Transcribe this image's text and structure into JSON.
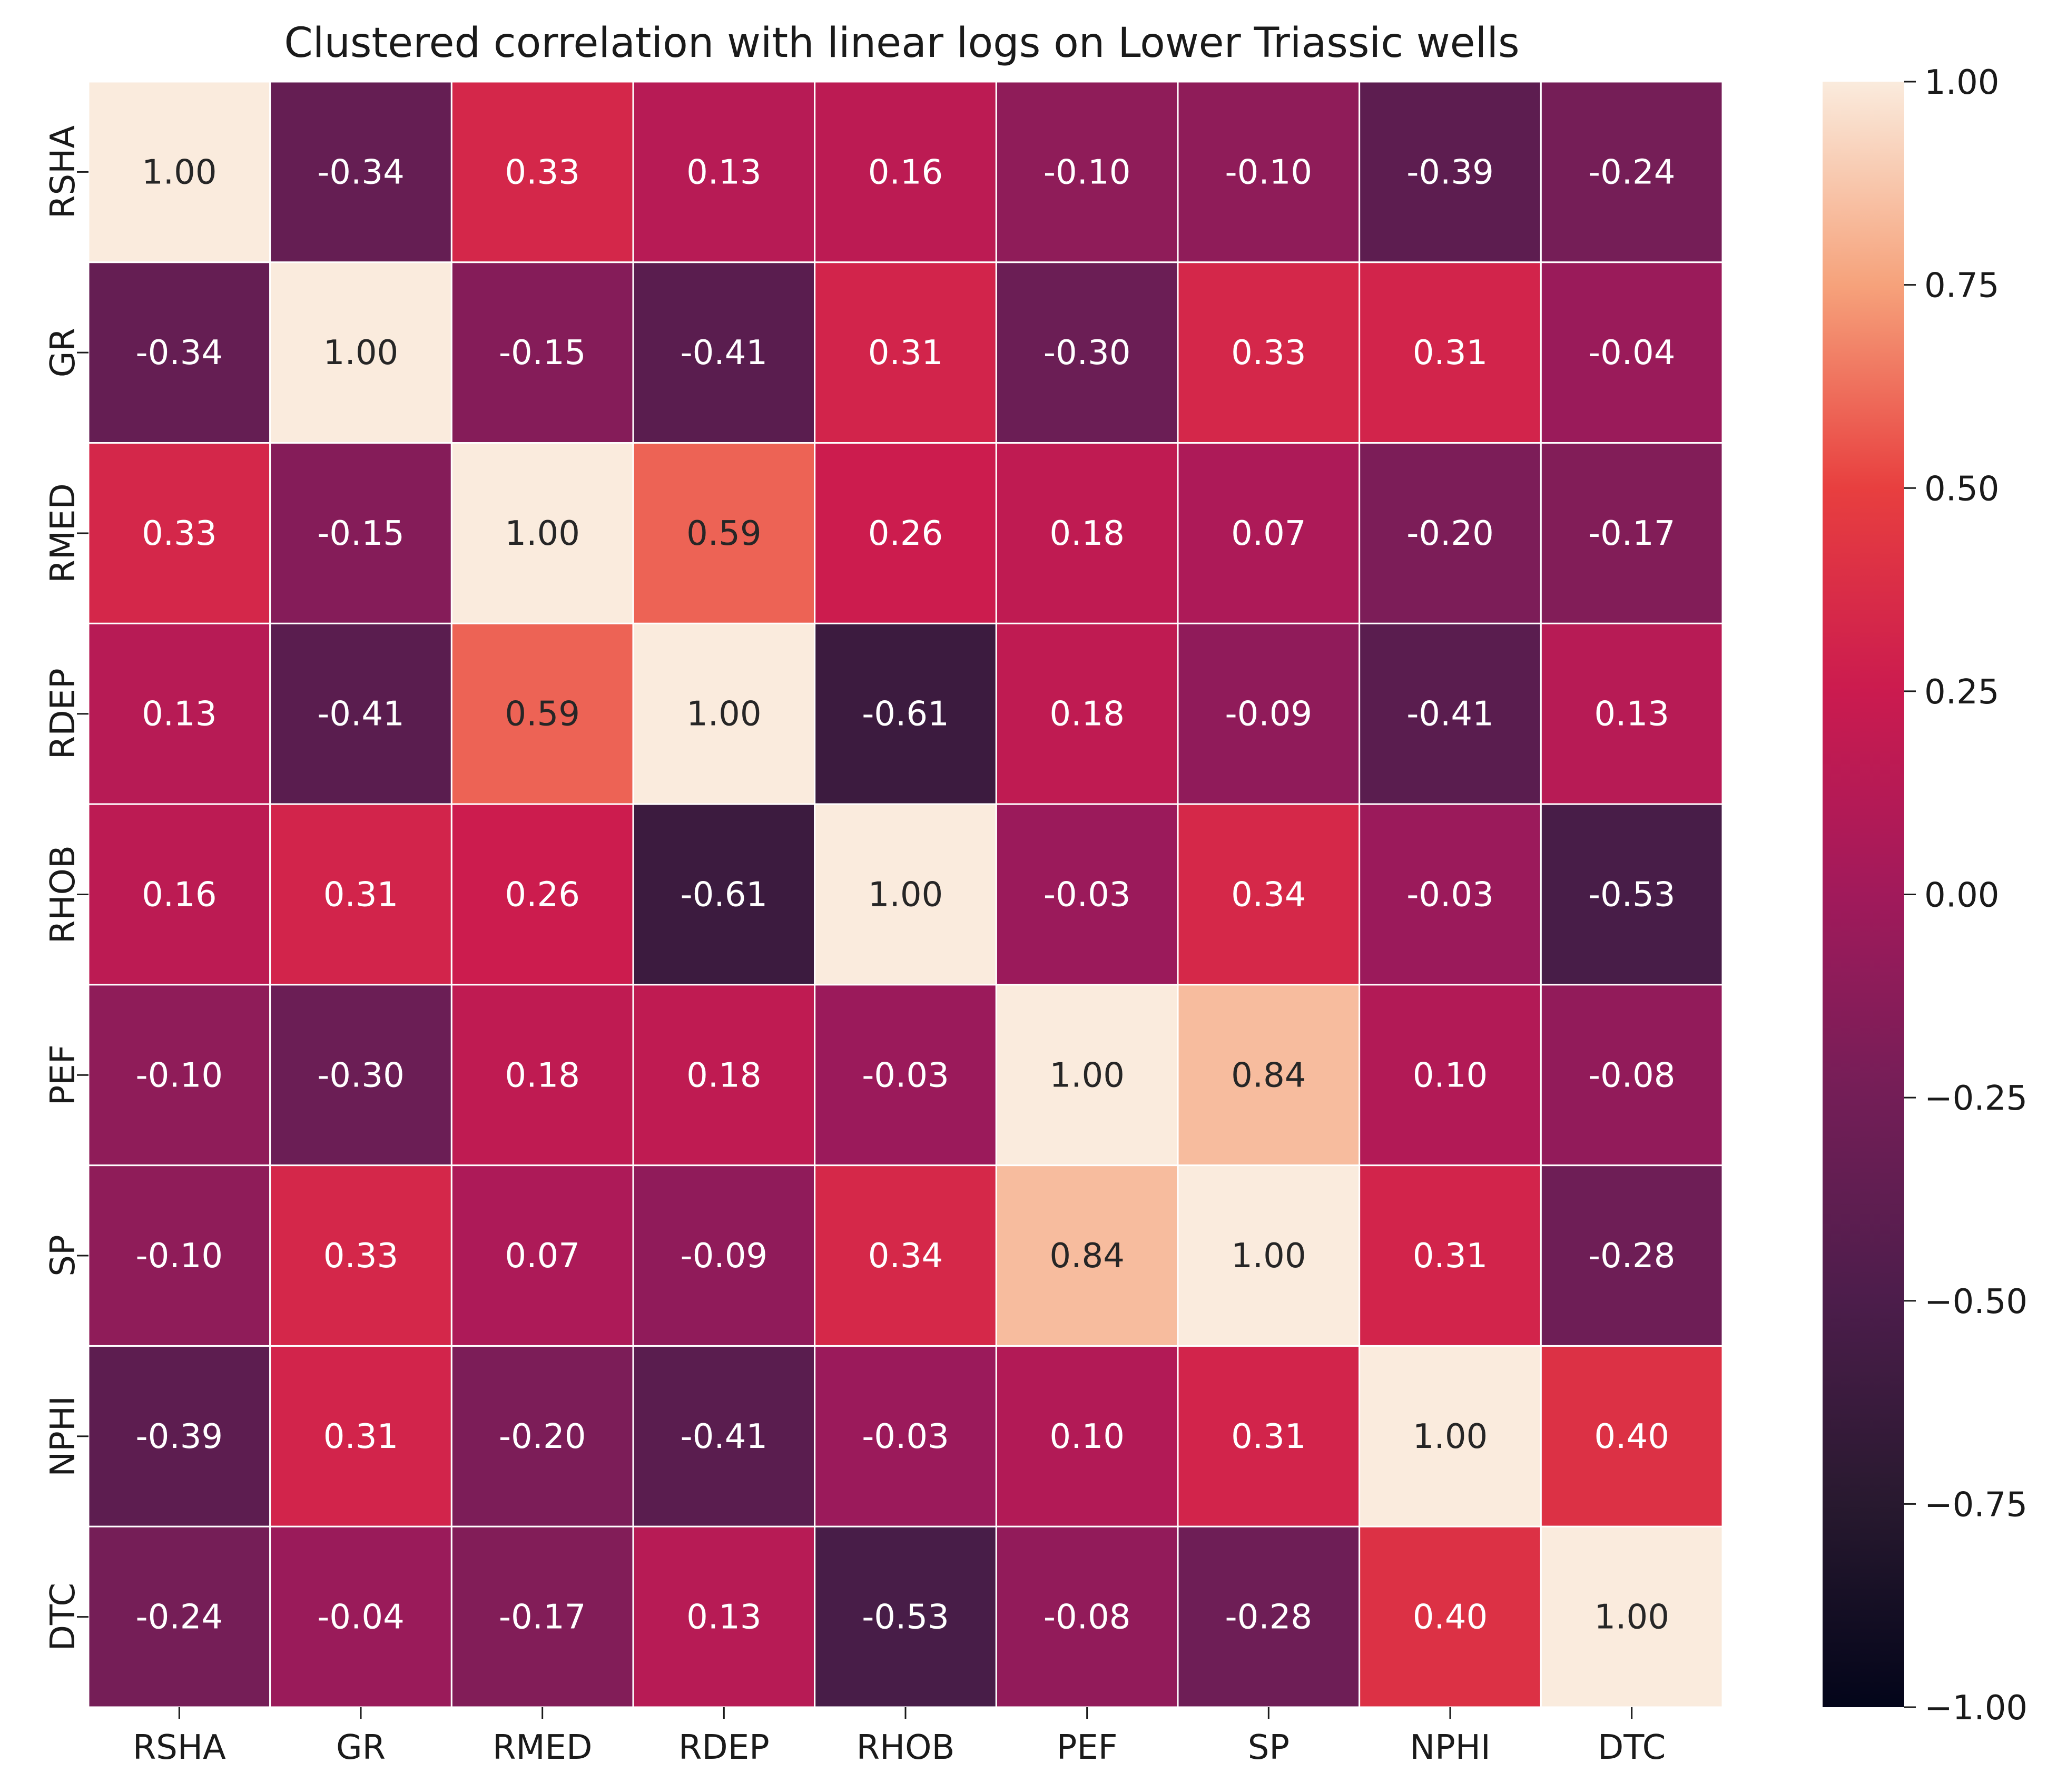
{
  "chart_data": {
    "type": "heatmap",
    "title": "Clustered correlation with linear logs on Lower Triassic wells",
    "x_labels": [
      "RSHA",
      "GR",
      "RMED",
      "RDEP",
      "RHOB",
      "PEF",
      "SP",
      "NPHI",
      "DTC"
    ],
    "y_labels": [
      "RSHA",
      "GR",
      "RMED",
      "RDEP",
      "RHOB",
      "PEF",
      "SP",
      "NPHI",
      "DTC"
    ],
    "values": [
      [
        1.0,
        -0.34,
        0.33,
        0.13,
        0.16,
        -0.1,
        -0.1,
        -0.39,
        -0.24
      ],
      [
        -0.34,
        1.0,
        -0.15,
        -0.41,
        0.31,
        -0.3,
        0.33,
        0.31,
        -0.04
      ],
      [
        0.33,
        -0.15,
        1.0,
        0.59,
        0.26,
        0.18,
        0.07,
        -0.2,
        -0.17
      ],
      [
        0.13,
        -0.41,
        0.59,
        1.0,
        -0.61,
        0.18,
        -0.09,
        -0.41,
        0.13
      ],
      [
        0.16,
        0.31,
        0.26,
        -0.61,
        1.0,
        -0.03,
        0.34,
        -0.03,
        -0.53
      ],
      [
        -0.1,
        -0.3,
        0.18,
        0.18,
        -0.03,
        1.0,
        0.84,
        0.1,
        -0.08
      ],
      [
        -0.1,
        0.33,
        0.07,
        -0.09,
        0.34,
        0.84,
        1.0,
        0.31,
        -0.28
      ],
      [
        -0.39,
        0.31,
        -0.2,
        -0.41,
        -0.03,
        0.1,
        0.31,
        1.0,
        0.4
      ],
      [
        -0.24,
        -0.04,
        -0.17,
        0.13,
        -0.53,
        -0.08,
        -0.28,
        0.4,
        1.0
      ]
    ],
    "value_format": "0.00",
    "colormap": "rocket",
    "vmin": -1.0,
    "vmax": 1.0,
    "colorbar_ticks": [
      "1.00",
      "0.75",
      "0.50",
      "0.25",
      "0.00",
      "−0.25",
      "−0.50",
      "−0.75",
      "−1.00"
    ],
    "colorbar_tick_values": [
      1.0,
      0.75,
      0.5,
      0.25,
      0.0,
      -0.25,
      -0.5,
      -0.75,
      -1.0
    ],
    "grid": true,
    "legend": "colorbar-right"
  }
}
